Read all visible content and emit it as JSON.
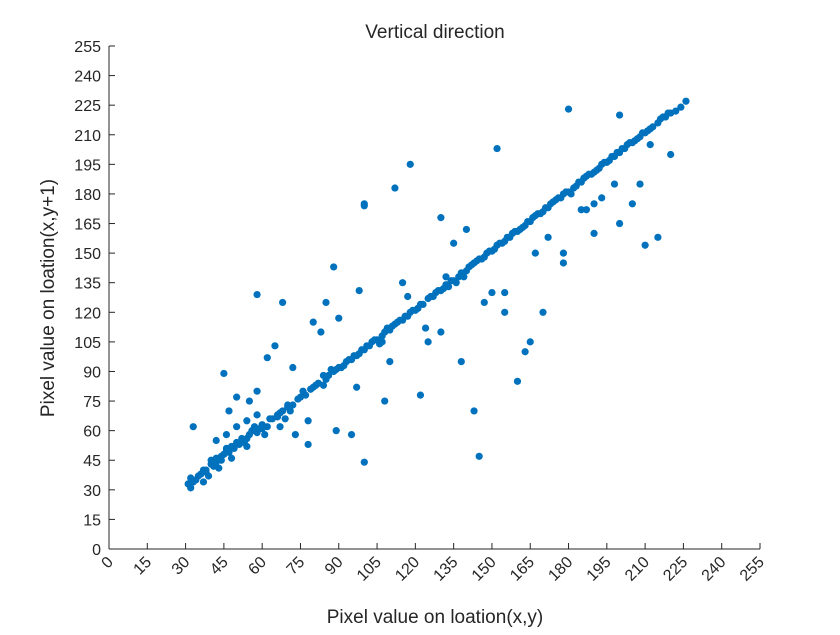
{
  "chart_data": {
    "type": "scatter",
    "title": "Vertical direction",
    "xlabel": "Pixel value on loation(x,y)",
    "ylabel": "Pixel value on loation(x,y+1)",
    "xlim": [
      0,
      255
    ],
    "ylim": [
      0,
      255
    ],
    "xticks": [
      0,
      15,
      30,
      45,
      60,
      75,
      90,
      105,
      120,
      135,
      150,
      165,
      180,
      195,
      210,
      225,
      240,
      255
    ],
    "yticks": [
      0,
      15,
      30,
      45,
      60,
      75,
      90,
      105,
      120,
      135,
      150,
      165,
      180,
      195,
      210,
      225,
      240,
      255
    ],
    "grid": false,
    "marker_color": "#0072BD",
    "axis_color": "#262626",
    "series": [
      {
        "x": [
          31,
          33,
          34,
          36,
          37,
          38,
          40,
          41,
          42,
          44,
          45,
          46,
          48,
          49,
          50,
          52,
          53,
          55,
          56,
          58,
          60,
          62,
          64,
          66,
          68,
          70,
          72,
          75,
          77,
          80,
          82,
          85,
          88,
          90,
          92,
          95,
          98,
          100,
          102,
          105,
          108,
          110,
          112,
          115,
          118,
          120,
          122,
          125,
          128,
          130,
          132,
          135,
          138,
          140,
          142,
          145,
          148,
          150,
          152,
          155,
          158,
          160,
          162,
          165,
          168,
          170,
          172,
          175,
          178,
          180,
          182,
          185,
          188,
          190,
          192,
          195,
          198,
          200,
          202,
          205,
          208,
          210,
          212,
          215,
          218,
          220,
          222,
          224,
          226,
          33,
          45,
          50,
          58,
          62,
          65,
          68,
          72,
          78,
          83,
          88,
          95,
          100,
          108,
          112,
          118,
          125,
          130,
          138,
          145,
          152,
          160,
          170,
          180,
          190,
          200,
          210,
          32,
          40,
          46,
          52,
          57,
          63,
          70,
          76,
          82,
          87,
          93,
          97,
          103,
          107,
          113,
          117,
          123,
          127,
          133,
          137,
          143,
          147,
          153,
          157,
          163,
          167,
          173,
          177,
          183,
          187,
          193,
          197,
          203,
          207,
          213,
          217,
          35,
          42,
          47,
          54,
          60,
          66,
          71,
          79,
          84,
          91,
          99,
          106,
          114,
          121,
          129,
          136,
          144,
          151,
          159,
          166,
          174,
          181,
          189,
          196,
          204,
          211,
          38,
          43,
          51,
          59,
          67,
          74,
          81,
          89,
          96,
          104,
          111,
          119,
          126,
          134,
          141,
          149,
          156,
          164,
          171,
          179,
          186,
          194,
          201,
          209,
          216,
          80,
          85,
          90,
          98,
          100,
          107,
          115,
          122,
          140,
          143,
          155,
          163,
          178,
          187,
          200,
          208,
          215,
          100,
          110,
          130,
          150,
          165,
          178,
          190,
          205,
          220,
          47,
          55,
          58,
          67,
          73,
          78,
          84,
          89,
          97,
          117,
          124,
          132,
          135,
          147,
          155,
          167,
          172,
          185,
          193,
          198,
          212,
          32,
          37,
          39,
          43,
          48,
          54,
          61,
          69,
          86,
          94,
          101,
          109,
          116,
          131,
          139,
          146,
          154,
          161,
          169,
          176,
          184,
          191,
          199,
          206,
          219,
          42,
          46,
          50,
          54,
          58,
          41,
          44,
          49,
          53,
          57
        ],
        "y": [
          33,
          34,
          35,
          38,
          40,
          39,
          43,
          42,
          46,
          45,
          48,
          50,
          52,
          51,
          54,
          56,
          55,
          58,
          60,
          59,
          63,
          62,
          66,
          68,
          70,
          72,
          73,
          77,
          78,
          82,
          84,
          86,
          90,
          92,
          93,
          96,
          99,
          101,
          103,
          106,
          110,
          111,
          114,
          116,
          120,
          121,
          124,
          127,
          130,
          131,
          134,
          136,
          140,
          141,
          144,
          147,
          150,
          151,
          154,
          156,
          160,
          161,
          163,
          166,
          170,
          171,
          173,
          177,
          180,
          181,
          183,
          186,
          190,
          191,
          193,
          196,
          199,
          201,
          203,
          206,
          209,
          211,
          213,
          216,
          219,
          221,
          222,
          224,
          227,
          62,
          89,
          77,
          129,
          97,
          103,
          125,
          92,
          65,
          110,
          143,
          58,
          174,
          75,
          183,
          195,
          105,
          168,
          95,
          47,
          203,
          85,
          120,
          223,
          175,
          220,
          154,
          36,
          45,
          51,
          55,
          62,
          66,
          73,
          80,
          84,
          91,
          95,
          98,
          105,
          108,
          115,
          118,
          124,
          128,
          133,
          138,
          145,
          148,
          155,
          158,
          164,
          169,
          175,
          178,
          184,
          189,
          195,
          199,
          205,
          208,
          214,
          219,
          37,
          44,
          49,
          56,
          61,
          67,
          70,
          81,
          83,
          92,
          101,
          104,
          116,
          122,
          131,
          135,
          146,
          152,
          161,
          168,
          176,
          180,
          190,
          197,
          206,
          212,
          40,
          46,
          53,
          61,
          69,
          76,
          83,
          91,
          98,
          106,
          113,
          121,
          128,
          136,
          143,
          151,
          158,
          166,
          173,
          181,
          188,
          196,
          203,
          211,
          218,
          115,
          125,
          117,
          131,
          175,
          105,
          135,
          78,
          162,
          70,
          120,
          100,
          145,
          172,
          165,
          185,
          158,
          44,
          95,
          110,
          130,
          105,
          150,
          160,
          175,
          200,
          70,
          75,
          80,
          62,
          58,
          53,
          88,
          60,
          82,
          128,
          112,
          138,
          155,
          125,
          130,
          150,
          158,
          172,
          178,
          185,
          205,
          31,
          34,
          37,
          41,
          46,
          52,
          58,
          66,
          88,
          96,
          103,
          112,
          118,
          132,
          138,
          147,
          155,
          162,
          170,
          178,
          186,
          192,
          201,
          207,
          221,
          55,
          58,
          62,
          65,
          68,
          42,
          47,
          52,
          54,
          60
        ]
      }
    ]
  }
}
